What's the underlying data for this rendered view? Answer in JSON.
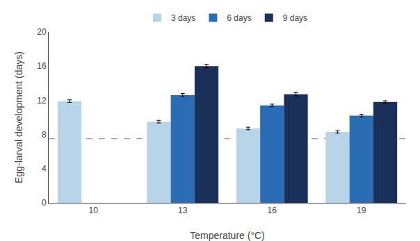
{
  "chart_data": {
    "type": "bar",
    "xlabel": "Temperature (°C)",
    "ylabel": "Egg-larval development (days)",
    "categories": [
      "10",
      "13",
      "16",
      "19"
    ],
    "series": [
      {
        "name": "3 days",
        "color": "#b8d4e8",
        "values": [
          11.9,
          9.5,
          8.7,
          8.3
        ],
        "errors": [
          0.15,
          0.15,
          0.15,
          0.15
        ]
      },
      {
        "name": "6 days",
        "color": "#2a6db5",
        "values": [
          null,
          12.6,
          11.4,
          10.2
        ],
        "errors": [
          null,
          0.2,
          0.15,
          0.15
        ]
      },
      {
        "name": "9 days",
        "color": "#1a2f5a",
        "values": [
          null,
          16.0,
          12.7,
          11.8
        ],
        "errors": [
          null,
          0.2,
          0.2,
          0.15
        ]
      }
    ],
    "reference_line": 7.5,
    "ylim": [
      0,
      20
    ],
    "yticks": [
      0,
      4,
      8,
      12,
      16,
      20
    ],
    "grid": false,
    "legend": "top"
  }
}
